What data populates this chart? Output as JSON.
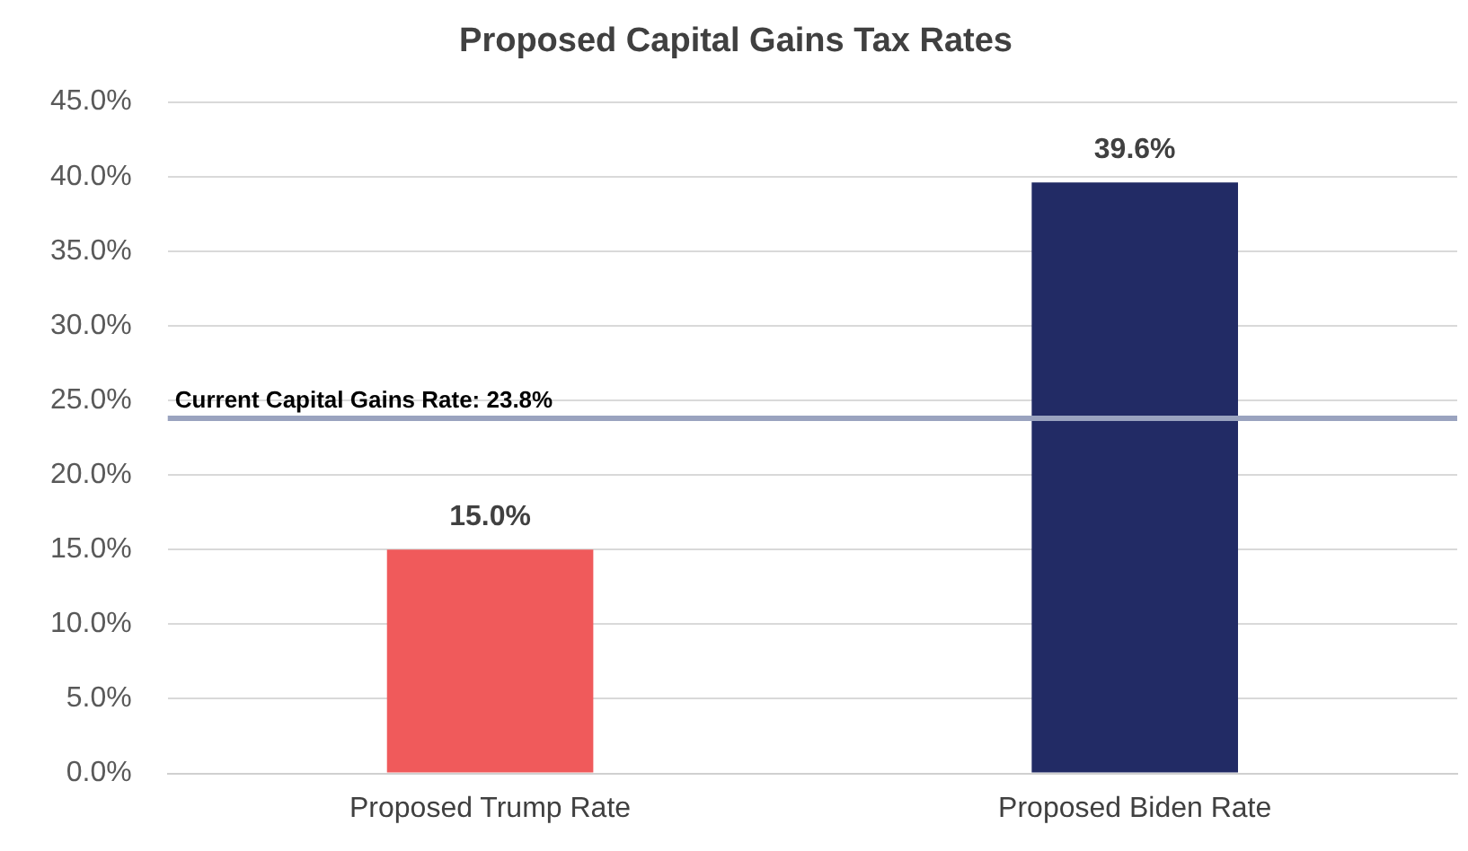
{
  "chart_data": {
    "type": "bar",
    "title": "Proposed Capital Gains Tax Rates",
    "categories": [
      "Proposed Trump Rate",
      "Proposed Biden Rate"
    ],
    "values": [
      15.0,
      39.6
    ],
    "colors": [
      "#f05a5b",
      "#222b65"
    ],
    "value_labels": [
      "15.0%",
      "39.6%"
    ],
    "ylim": [
      0,
      45
    ],
    "yticks": [
      {
        "value": 0,
        "label": "0.0%"
      },
      {
        "value": 5,
        "label": "5.0%"
      },
      {
        "value": 10,
        "label": "10.0%"
      },
      {
        "value": 15,
        "label": "15.0%"
      },
      {
        "value": 20,
        "label": "20.0%"
      },
      {
        "value": 25,
        "label": "25.0%"
      },
      {
        "value": 30,
        "label": "30.0%"
      },
      {
        "value": 35,
        "label": "35.0%"
      },
      {
        "value": 40,
        "label": "40.0%"
      },
      {
        "value": 45,
        "label": "45.0%"
      }
    ],
    "ref_lines": [
      {
        "axis": "y",
        "value": 23.8,
        "label": "Current Capital Gains Rate: 23.8%",
        "color": "#9aa3bf"
      }
    ],
    "grid": "y",
    "legend": false
  }
}
